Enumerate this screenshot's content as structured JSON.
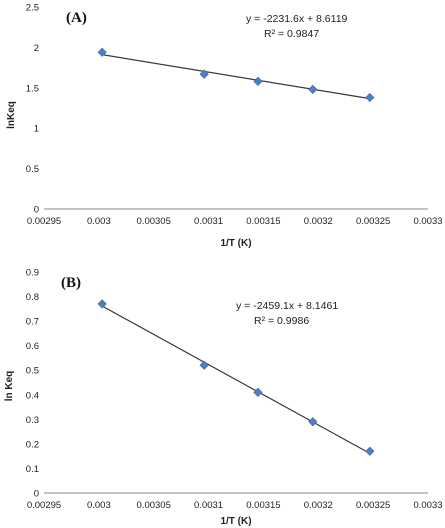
{
  "chart_data": [
    {
      "type": "scatter",
      "panel_label": "(A)",
      "xlabel": "1/T  (K)",
      "ylabel": "lnKeq",
      "xlim": [
        0.00295,
        0.0033
      ],
      "ylim": [
        0,
        2.5
      ],
      "x_ticks": [
        "0.00295",
        "0.003",
        "0.00305",
        "0.0031",
        "0.00315",
        "0.0032",
        "0.00325",
        "0.0033"
      ],
      "y_ticks": [
        "0",
        "0.5",
        "1",
        "1.5",
        "2",
        "2.5"
      ],
      "x": [
        0.003003,
        0.003096,
        0.003145,
        0.003195,
        0.003247
      ],
      "y": [
        1.94,
        1.67,
        1.58,
        1.48,
        1.38
      ],
      "marker_color": "#4f7fc0",
      "trendline": {
        "slope": -2231.6,
        "intercept": 8.6119,
        "color": "#3a3a3a"
      },
      "equation": "y = -2231.6x + 8.6119",
      "r2": "R² = 0.9847",
      "grid": false
    },
    {
      "type": "scatter",
      "panel_label": "(B)",
      "xlabel": "1/T  (K)",
      "ylabel": "ln Keq",
      "xlim": [
        0.00295,
        0.0033
      ],
      "ylim": [
        0,
        0.9
      ],
      "x_ticks": [
        "0.00295",
        "0.003",
        "0.00305",
        "0.0031",
        "0.00315",
        "0.0032",
        "0.00325",
        "0.0033"
      ],
      "y_ticks": [
        "0",
        "0.1",
        "0.2",
        "0.3",
        "0.4",
        "0.5",
        "0.6",
        "0.7",
        "0.8",
        "0.9"
      ],
      "x": [
        0.003003,
        0.003096,
        0.003145,
        0.003195,
        0.003247
      ],
      "y": [
        0.77,
        0.52,
        0.41,
        0.29,
        0.17
      ],
      "marker_color": "#4f7fc0",
      "trendline": {
        "slope": -2459.1,
        "intercept": 8.1461,
        "color": "#3a3a3a"
      },
      "equation": "y = -2459.1x + 8.1461",
      "r2": "R² = 0.9986",
      "grid": false
    }
  ]
}
